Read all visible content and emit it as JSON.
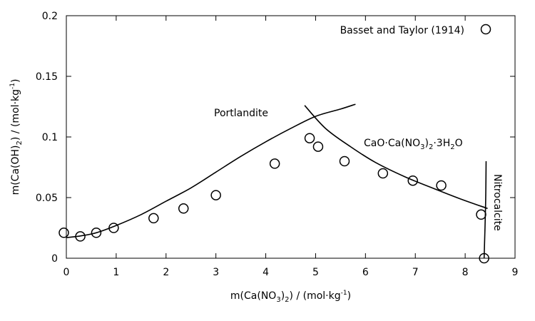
{
  "chart_data": {
    "type": "scatter",
    "xlabel_parts": [
      "m(Ca(NO",
      "3",
      ")",
      "2",
      ") / (mol·kg",
      "-1",
      ")"
    ],
    "ylabel_parts": [
      "m(Ca(OH)",
      "2",
      ") / (mol·kg",
      "-1",
      ")"
    ],
    "xlim": [
      0,
      9
    ],
    "ylim": [
      0,
      0.2
    ],
    "xticks": [
      0,
      1,
      2,
      3,
      4,
      5,
      6,
      7,
      8,
      9
    ],
    "xtick_labels": [
      "0",
      "1",
      "2",
      "3",
      "4",
      "5",
      "6",
      "7",
      "8",
      "9"
    ],
    "yticks": [
      0,
      0.05,
      0.1,
      0.15,
      0.2
    ],
    "ytick_labels": [
      "0",
      "0.05",
      "0.1",
      "0.15",
      "0.2"
    ],
    "grid": false,
    "legend": {
      "position": "top-right",
      "entries": [
        "Basset and Taylor (1914)"
      ]
    },
    "series": [
      {
        "name": "Basset and Taylor (1914)",
        "kind": "scatter",
        "marker": "open-circle",
        "points": [
          [
            -0.05,
            0.021
          ],
          [
            0.28,
            0.018
          ],
          [
            0.6,
            0.021
          ],
          [
            0.95,
            0.025
          ],
          [
            1.75,
            0.033
          ],
          [
            2.35,
            0.041
          ],
          [
            3.0,
            0.052
          ],
          [
            4.18,
            0.078
          ],
          [
            4.88,
            0.099
          ],
          [
            5.05,
            0.092
          ],
          [
            5.58,
            0.08
          ],
          [
            6.35,
            0.07
          ],
          [
            6.95,
            0.064
          ],
          [
            7.52,
            0.06
          ],
          [
            8.32,
            0.036
          ],
          [
            8.38,
            0.0
          ]
        ]
      },
      {
        "kind": "line",
        "label": "Portlandite",
        "points": [
          [
            0.0,
            0.017
          ],
          [
            0.3,
            0.0185
          ],
          [
            0.6,
            0.021
          ],
          [
            1.0,
            0.027
          ],
          [
            1.5,
            0.036
          ],
          [
            2.0,
            0.047
          ],
          [
            2.5,
            0.058
          ],
          [
            3.0,
            0.071
          ],
          [
            3.5,
            0.084
          ],
          [
            4.0,
            0.096
          ],
          [
            4.5,
            0.107
          ],
          [
            5.0,
            0.117
          ],
          [
            5.5,
            0.123
          ],
          [
            5.8,
            0.127
          ]
        ]
      },
      {
        "kind": "line",
        "label": "CaO·Ca(NO3)2·3H2O",
        "points": [
          [
            4.78,
            0.126
          ],
          [
            5.2,
            0.107
          ],
          [
            5.7,
            0.092
          ],
          [
            6.2,
            0.079
          ],
          [
            6.8,
            0.067
          ],
          [
            7.4,
            0.057
          ],
          [
            7.9,
            0.049
          ],
          [
            8.45,
            0.041
          ]
        ]
      },
      {
        "kind": "line",
        "label": "Nitrocalcite",
        "points": [
          [
            8.38,
            0.0
          ],
          [
            8.41,
            0.045
          ],
          [
            8.42,
            0.08
          ]
        ]
      }
    ],
    "annotations": {
      "portlandite": "Portlandite",
      "complex_parts": [
        "CaO·Ca(NO",
        "3",
        ")",
        "2",
        "·3H",
        "2",
        "O"
      ],
      "nitrocalcite": "Nitrocalcite"
    }
  }
}
